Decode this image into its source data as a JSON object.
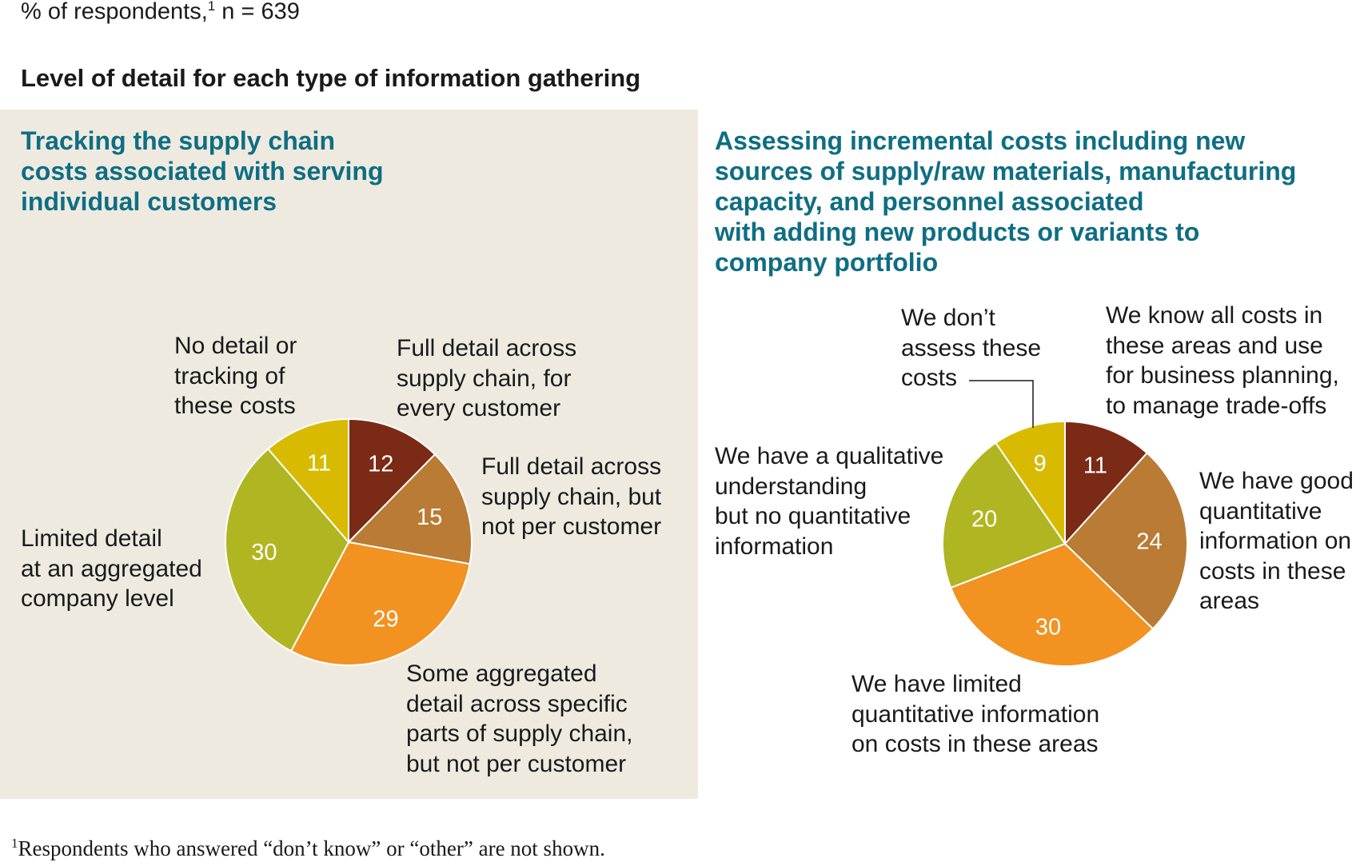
{
  "header": {
    "subtitle": "% of respondents,",
    "subtitle_sup": "1",
    "subtitle_n": " n = 639",
    "title": "Level of detail for each type of information gathering"
  },
  "colors": {
    "panel_bg": "#eeeae0",
    "title_teal": "#0e6e83",
    "dark_red": "#7b2a15",
    "tan": "#ba7b35",
    "orange": "#f19221",
    "olive": "#b0b522",
    "yellow": "#d8bb00",
    "value_text": "#ffffff"
  },
  "chart_data": [
    {
      "type": "pie",
      "title": "Tracking the supply chain\ncosts associated with serving\nindividual customers",
      "categories": [
        "Full detail across\nsupply chain, for\nevery customer",
        "Full detail across\nsupply chain, but\nnot per customer",
        "Some aggregated\ndetail across specific\nparts of supply chain,\nbut not per customer",
        "Limited detail\nat an aggregated\ncompany level",
        "No detail or\ntracking of\nthese costs"
      ],
      "values": [
        12,
        15,
        29,
        30,
        11
      ],
      "colors": [
        "#7b2a15",
        "#ba7b35",
        "#f19221",
        "#b0b522",
        "#d8bb00"
      ]
    },
    {
      "type": "pie",
      "title": "Assessing incremental costs including new\nsources of supply/raw materials, manufacturing\ncapacity, and personnel associated\nwith adding new products or variants to\ncompany portfolio",
      "categories": [
        "We know all costs in\nthese areas and use\nfor business planning,\nto manage trade-offs",
        "We have good\nquantitative\ninformation on\ncosts in these\nareas",
        "We have limited\nquantitative information\non costs in these areas",
        "We have a qualitative\nunderstanding\nbut no quantitative\ninformation",
        "We don’t\nassess these\ncosts"
      ],
      "values": [
        11,
        24,
        30,
        20,
        9
      ],
      "colors": [
        "#7b2a15",
        "#ba7b35",
        "#f19221",
        "#b0b522",
        "#d8bb00"
      ]
    }
  ],
  "footnote": {
    "sup": "1",
    "text": "Respondents who answered “don’t know” or “other” are not shown."
  }
}
